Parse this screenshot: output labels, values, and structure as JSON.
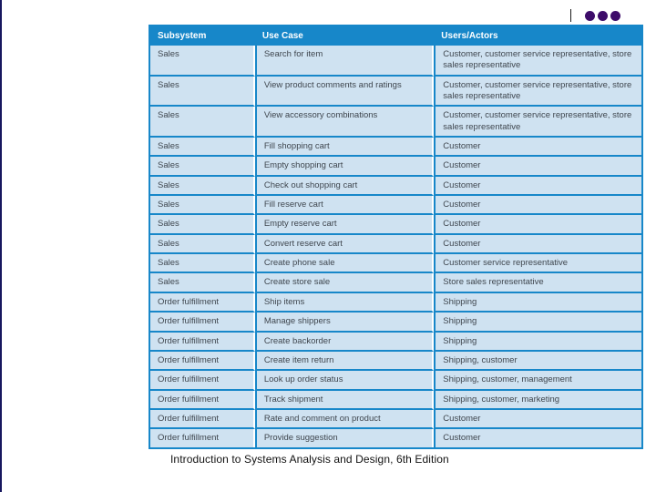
{
  "page": {
    "caption": "Introduction to Systems Analysis and Design, 6th Edition"
  },
  "decorations": {
    "dot_count": 3
  },
  "colors": {
    "header_bg": "#1787c9",
    "row_bg": "#cfe2f1",
    "border": "#1787c9",
    "header_text": "#ffffff",
    "cell_text": "#3f464e",
    "dots": "#3d0c69",
    "caption_text": "#111111"
  },
  "table": {
    "headers": [
      "Subsystem",
      "Use Case",
      "Users/Actors"
    ],
    "rows": [
      {
        "subsystem": "Sales",
        "use_case": "Search for item",
        "users_actors": "Customer, customer service representative, store sales representative"
      },
      {
        "subsystem": "Sales",
        "use_case": "View product comments and ratings",
        "users_actors": "Customer, customer service representative, store sales representative"
      },
      {
        "subsystem": "Sales",
        "use_case": "View accessory combinations",
        "users_actors": "Customer, customer service representative, store sales representative"
      },
      {
        "subsystem": "Sales",
        "use_case": "Fill shopping cart",
        "users_actors": "Customer"
      },
      {
        "subsystem": "Sales",
        "use_case": "Empty shopping cart",
        "users_actors": "Customer"
      },
      {
        "subsystem": "Sales",
        "use_case": "Check out shopping cart",
        "users_actors": "Customer"
      },
      {
        "subsystem": "Sales",
        "use_case": "Fill reserve cart",
        "users_actors": "Customer"
      },
      {
        "subsystem": "Sales",
        "use_case": "Empty reserve cart",
        "users_actors": "Customer"
      },
      {
        "subsystem": "Sales",
        "use_case": "Convert reserve cart",
        "users_actors": "Customer"
      },
      {
        "subsystem": "Sales",
        "use_case": "Create phone sale",
        "users_actors": "Customer service representative"
      },
      {
        "subsystem": "Sales",
        "use_case": "Create store sale",
        "users_actors": "Store sales representative"
      },
      {
        "subsystem": "Order fulfillment",
        "use_case": "Ship items",
        "users_actors": "Shipping"
      },
      {
        "subsystem": "Order fulfillment",
        "use_case": "Manage shippers",
        "users_actors": "Shipping"
      },
      {
        "subsystem": "Order fulfillment",
        "use_case": "Create backorder",
        "users_actors": "Shipping"
      },
      {
        "subsystem": "Order fulfillment",
        "use_case": "Create item return",
        "users_actors": "Shipping, customer"
      },
      {
        "subsystem": "Order fulfillment",
        "use_case": "Look up order status",
        "users_actors": "Shipping, customer, management"
      },
      {
        "subsystem": "Order fulfillment",
        "use_case": "Track shipment",
        "users_actors": "Shipping, customer, marketing"
      },
      {
        "subsystem": "Order fulfillment",
        "use_case": "Rate and comment on product",
        "users_actors": "Customer"
      },
      {
        "subsystem": "Order fulfillment",
        "use_case": "Provide suggestion",
        "users_actors": "Customer"
      }
    ]
  }
}
